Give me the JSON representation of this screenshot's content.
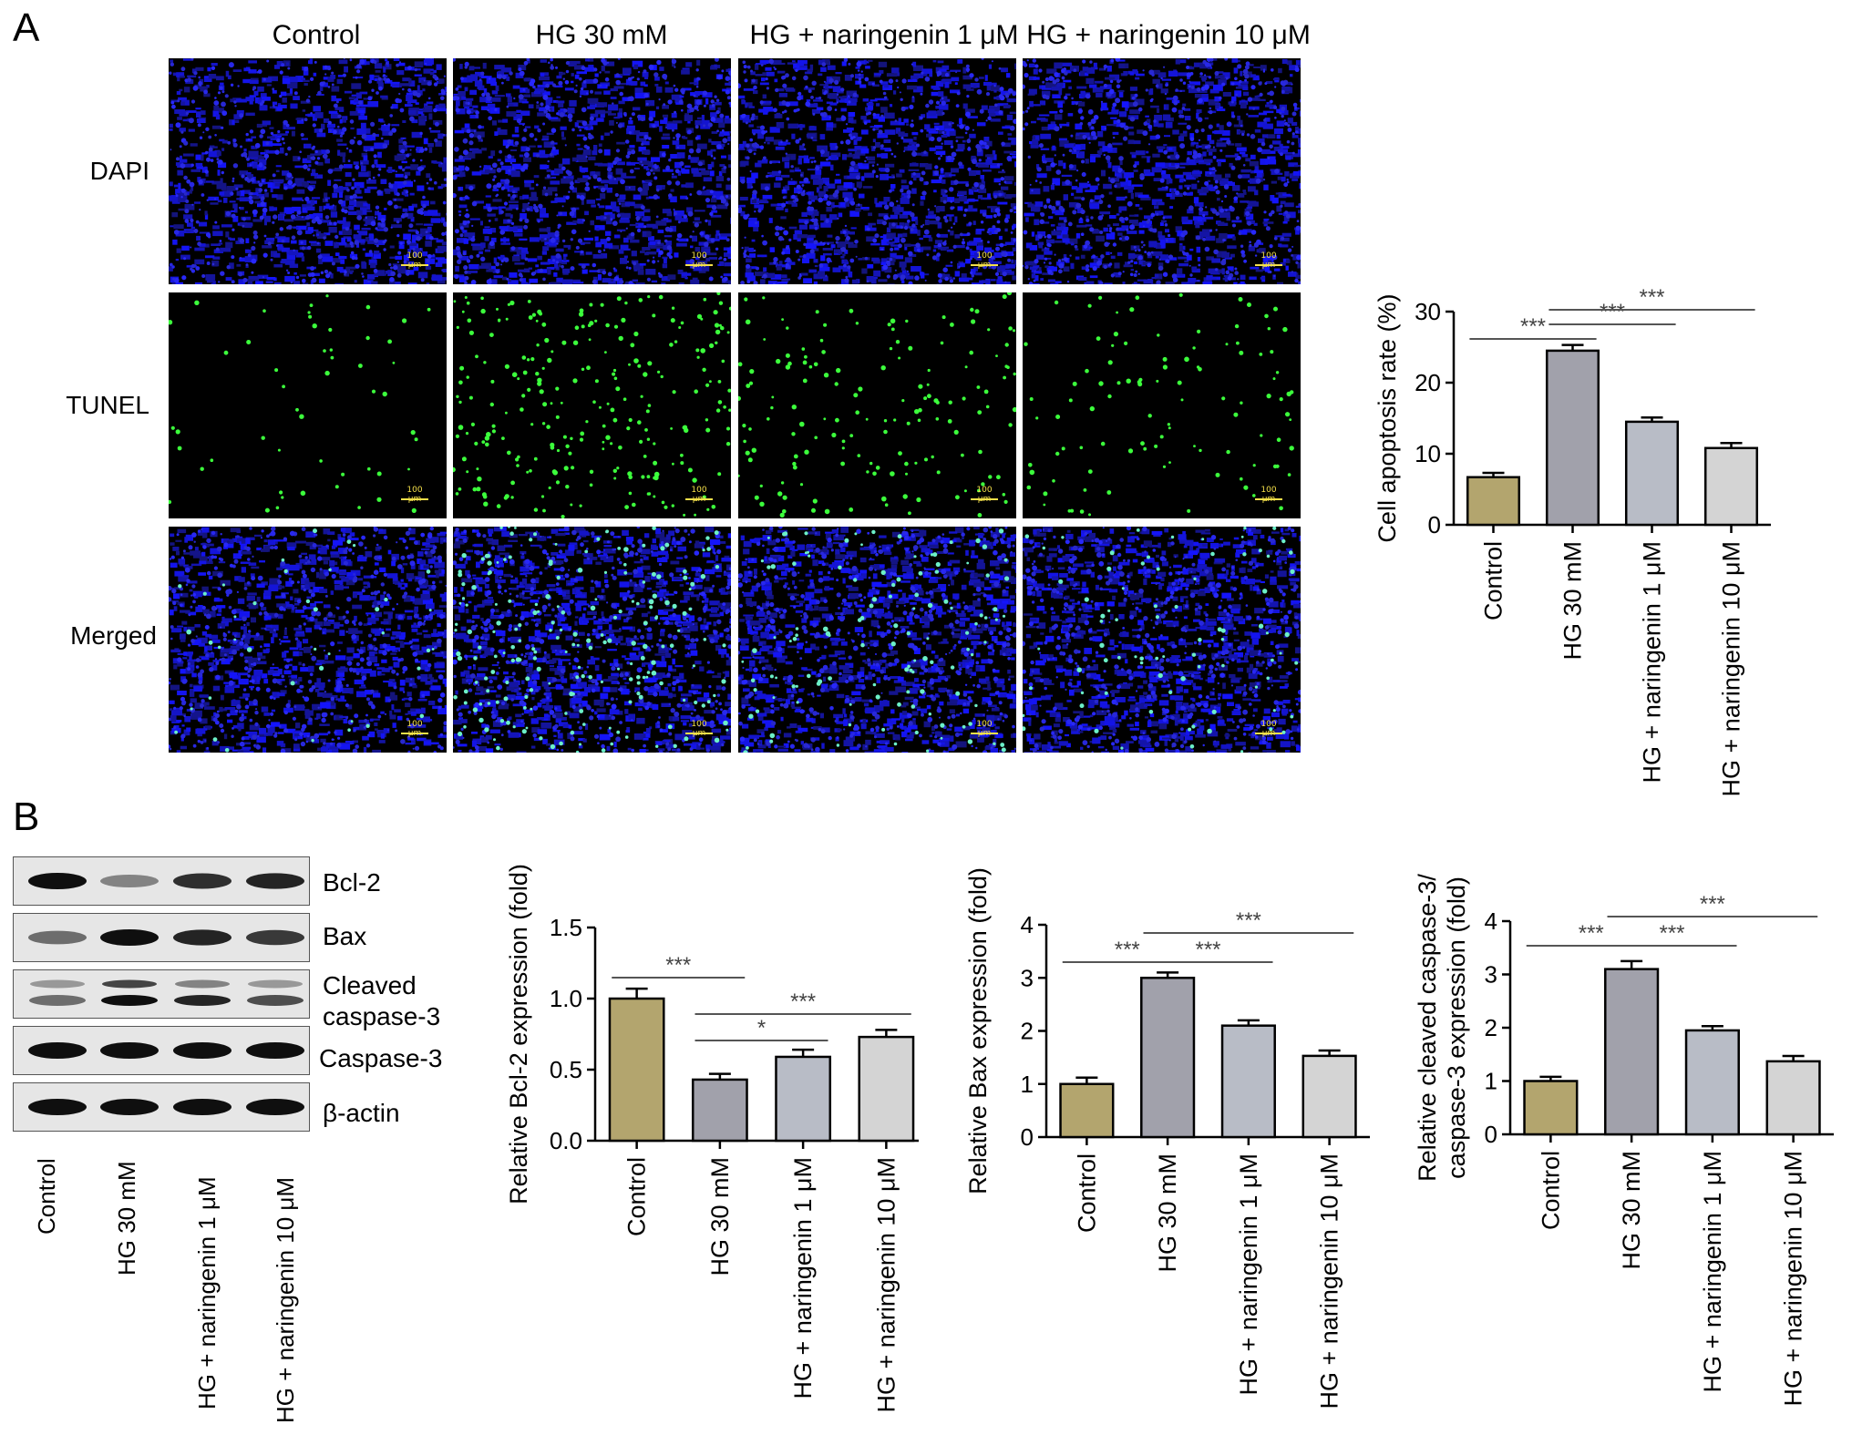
{
  "panel_a": {
    "letter": "A",
    "columns": [
      "Control",
      "HG 30 mM",
      "HG + naringenin 1 μM",
      "HG + naringenin 10 μM"
    ],
    "rows": [
      "DAPI",
      "TUNEL",
      "Merged"
    ],
    "scale_bar": "100 μm",
    "tunel_density": [
      0.2,
      1.0,
      0.6,
      0.4
    ]
  },
  "panel_b": {
    "letter": "B",
    "blot_proteins": [
      "Bcl-2",
      "Bax",
      "Cleaved",
      "caspase-3",
      "Caspase-3",
      "β-actin"
    ],
    "blot_lanes": [
      "Control",
      "HG 30 mM",
      "HG + naringenin 1 μM",
      "HG + naringenin 10 μM"
    ],
    "band_intensity": {
      "Bcl-2": [
        1.0,
        0.45,
        0.85,
        0.9
      ],
      "Bax": [
        0.55,
        1.0,
        0.9,
        0.8
      ],
      "Cleaved caspase-3 upper": [
        0.35,
        0.75,
        0.45,
        0.35
      ],
      "Cleaved caspase-3 lower": [
        0.55,
        1.0,
        0.9,
        0.7
      ],
      "Caspase-3": [
        1.0,
        1.0,
        1.0,
        1.0
      ],
      "β-actin": [
        1.0,
        1.0,
        1.0,
        1.0
      ]
    }
  },
  "chart_data": [
    {
      "type": "bar",
      "ylabel": "Cell apoptosis rate (%)",
      "categories": [
        "Control",
        "HG 30 mM",
        "HG + naringenin 1 μM",
        "HG + naringenin 10 μM"
      ],
      "values": [
        6.7,
        24.5,
        14.5,
        10.8
      ],
      "errors": [
        0.6,
        0.8,
        0.6,
        0.7
      ],
      "ylim": [
        0,
        30
      ],
      "yticks": [
        "0",
        "10",
        "20",
        "30"
      ],
      "colors": [
        "#b3a56e",
        "#a1a1ab",
        "#b8bcc6",
        "#d4d4d4"
      ],
      "significance": [
        {
          "from": 0,
          "to": 1,
          "label": "***"
        },
        {
          "from": 1,
          "to": 2,
          "label": "***"
        },
        {
          "from": 1,
          "to": 3,
          "label": "***"
        }
      ]
    },
    {
      "type": "bar",
      "ylabel": "Relative Bcl-2 expression (fold)",
      "categories": [
        "Control",
        "HG 30 mM",
        "HG + naringenin 1 μM",
        "HG + naringenin 10 μM"
      ],
      "values": [
        1.0,
        0.43,
        0.59,
        0.73
      ],
      "errors": [
        0.07,
        0.04,
        0.05,
        0.05
      ],
      "ylim": [
        0,
        1.5
      ],
      "yticks": [
        "0.0",
        "0.5",
        "1.0",
        "1.5"
      ],
      "colors": [
        "#b3a56e",
        "#a1a1ab",
        "#b8bcc6",
        "#d4d4d4"
      ],
      "significance": [
        {
          "from": 0,
          "to": 1,
          "label": "***"
        },
        {
          "from": 1,
          "to": 2,
          "label": "*"
        },
        {
          "from": 1,
          "to": 3,
          "label": "***"
        }
      ]
    },
    {
      "type": "bar",
      "ylabel": "Relative Bax expression (fold)",
      "categories": [
        "Control",
        "HG 30 mM",
        "HG + naringenin 1 μM",
        "HG + naringenin 10 μM"
      ],
      "values": [
        1.0,
        3.0,
        2.1,
        1.53
      ],
      "errors": [
        0.12,
        0.1,
        0.1,
        0.1
      ],
      "ylim": [
        0,
        4
      ],
      "yticks": [
        "0",
        "1",
        "2",
        "3",
        "4"
      ],
      "colors": [
        "#b3a56e",
        "#a1a1ab",
        "#b8bcc6",
        "#d4d4d4"
      ],
      "significance": [
        {
          "from": 0,
          "to": 1,
          "label": "***"
        },
        {
          "from": 1,
          "to": 2,
          "label": "***"
        },
        {
          "from": 1,
          "to": 3,
          "label": "***"
        }
      ]
    },
    {
      "type": "bar",
      "ylabel": [
        "Relative cleaved caspase-3/",
        "caspase-3 expression (fold)"
      ],
      "categories": [
        "Control",
        "HG 30 mM",
        "HG + naringenin 1 μM",
        "HG + naringenin 10 μM"
      ],
      "values": [
        1.0,
        3.1,
        1.95,
        1.37
      ],
      "errors": [
        0.08,
        0.15,
        0.08,
        0.1
      ],
      "ylim": [
        0,
        4
      ],
      "yticks": [
        "0",
        "1",
        "2",
        "3",
        "4"
      ],
      "colors": [
        "#b3a56e",
        "#a1a1ab",
        "#b8bcc6",
        "#d4d4d4"
      ],
      "significance": [
        {
          "from": 0,
          "to": 1,
          "label": "***"
        },
        {
          "from": 1,
          "to": 2,
          "label": "***"
        },
        {
          "from": 1,
          "to": 3,
          "label": "***"
        }
      ]
    }
  ]
}
